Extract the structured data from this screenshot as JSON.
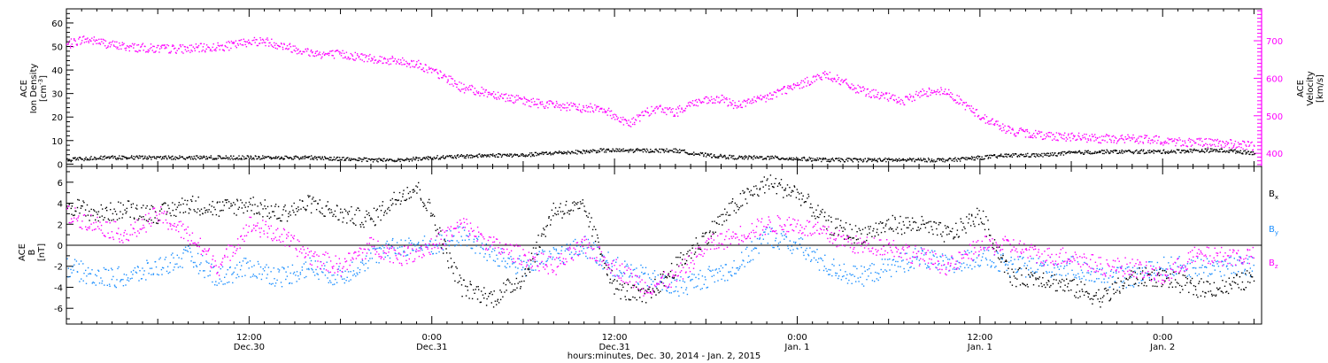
{
  "xaxis": {
    "title": "hours:minutes, Dec. 30, 2014 - Jan. 2, 2015",
    "ticks": [
      {
        "t": 12,
        "time": "12:00",
        "date": "Dec.30"
      },
      {
        "t": 24,
        "time": "0:00",
        "date": "Dec.31"
      },
      {
        "t": 36,
        "time": "12:00",
        "date": "Dec.31"
      },
      {
        "t": 48,
        "time": "0:00",
        "date": "Jan. 1"
      },
      {
        "t": 60,
        "time": "12:00",
        "date": "Jan. 1"
      },
      {
        "t": 72,
        "time": "0:00",
        "date": "Jan. 2"
      }
    ]
  },
  "chart_data": [
    {
      "type": "scatter",
      "panel": "top",
      "xlim": [
        0,
        78.5
      ],
      "x_unit": "hours since Dec. 30, 2014 0:00",
      "left_axis": {
        "label_lines": [
          "ACE",
          "Ion Density"
        ],
        "unit_base": "[cm",
        "unit_sup": "-3",
        "unit_close": "]",
        "ylim": [
          -1,
          66
        ],
        "ticks": [
          0,
          10,
          20,
          30,
          40,
          50,
          60
        ]
      },
      "right_axis": {
        "label_lines": [
          "ACE",
          "Velocity",
          "[km/s]"
        ],
        "ylim": [
          365,
          785
        ],
        "ticks": [
          400,
          500,
          600,
          700
        ],
        "color": "#ff00ff"
      },
      "series": [
        {
          "axis": "left",
          "color": "#000000",
          "x": [
            0,
            2,
            4,
            6,
            8,
            10,
            12,
            14,
            16,
            18,
            20,
            22,
            24,
            26,
            28,
            30,
            32,
            34,
            35,
            36,
            38,
            40,
            42,
            44,
            46,
            48,
            50,
            52,
            54,
            56,
            58,
            60,
            62,
            64,
            66,
            68,
            70,
            72,
            74,
            76,
            78
          ],
          "y": [
            2,
            3,
            3,
            3,
            3,
            3,
            3,
            3,
            3,
            2.5,
            2,
            2,
            3,
            3.5,
            4,
            4,
            5,
            5.5,
            6,
            6,
            6,
            6,
            4,
            3,
            3,
            2.5,
            2,
            2,
            2,
            2,
            2,
            3,
            4,
            4,
            5,
            5.5,
            5.5,
            5.5,
            6,
            6,
            5
          ]
        },
        {
          "axis": "right",
          "color": "#ff00ff",
          "x": [
            0,
            1,
            2,
            3,
            4,
            6,
            8,
            10,
            11,
            12,
            13,
            14,
            15,
            16,
            17,
            18,
            19,
            20,
            21,
            22,
            23,
            24,
            25,
            26,
            28,
            30,
            32,
            34,
            35,
            36,
            37,
            38,
            39,
            40,
            41,
            42,
            43,
            44,
            45,
            46,
            47,
            48,
            49,
            50,
            51,
            52,
            53,
            54,
            55,
            56,
            57,
            58,
            59,
            60,
            61,
            62,
            64,
            66,
            68,
            70,
            72,
            74,
            76,
            78
          ],
          "y": [
            690,
            705,
            700,
            690,
            685,
            680,
            680,
            685,
            690,
            700,
            700,
            690,
            680,
            670,
            665,
            665,
            660,
            655,
            650,
            645,
            640,
            620,
            600,
            575,
            560,
            540,
            530,
            520,
            525,
            500,
            480,
            510,
            520,
            510,
            535,
            540,
            545,
            530,
            540,
            550,
            570,
            580,
            600,
            610,
            590,
            570,
            560,
            550,
            540,
            560,
            570,
            560,
            530,
            500,
            480,
            460,
            450,
            445,
            440,
            440,
            435,
            430,
            428,
            420
          ]
        }
      ]
    },
    {
      "type": "scatter",
      "panel": "bottom",
      "xlim": [
        0,
        78.5
      ],
      "x_unit": "hours since Dec. 30, 2014 0:00",
      "left_axis": {
        "label_lines": [
          "ACE",
          "B",
          "[nT]"
        ],
        "ylim": [
          -7.5,
          7.5
        ],
        "ticks": [
          -6,
          -4,
          -2,
          0,
          2,
          4,
          6
        ]
      },
      "zero_line": true,
      "legend_placement": "right",
      "series": [
        {
          "name_base": "B",
          "name_sub": "x",
          "color": "#000000",
          "x": [
            0,
            2,
            4,
            6,
            8,
            10,
            12,
            14,
            16,
            18,
            20,
            22,
            23,
            24,
            25,
            26,
            28,
            30,
            32,
            34,
            36,
            38,
            40,
            42,
            44,
            46,
            48,
            50,
            52,
            54,
            56,
            58,
            60,
            62,
            64,
            66,
            68,
            70,
            72,
            74,
            76,
            78
          ],
          "y": [
            4,
            3,
            3.5,
            3,
            4,
            3.5,
            4,
            3,
            4,
            3,
            2.5,
            5,
            5.5,
            3,
            -1,
            -4,
            -5,
            -3,
            3.5,
            3.5,
            -4,
            -5,
            -2,
            1,
            4,
            6,
            5,
            2,
            1,
            2,
            2,
            1,
            3,
            -3,
            -3,
            -4,
            -5,
            -3,
            -3,
            -4,
            -4,
            -3
          ]
        },
        {
          "name_base": "B",
          "name_sub": "y",
          "color": "#1e90ff",
          "x": [
            0,
            2,
            4,
            6,
            8,
            10,
            12,
            14,
            16,
            18,
            20,
            22,
            24,
            26,
            28,
            30,
            32,
            34,
            36,
            38,
            40,
            42,
            44,
            46,
            48,
            50,
            52,
            54,
            56,
            58,
            60,
            62,
            64,
            66,
            68,
            70,
            72,
            74,
            76,
            78
          ],
          "y": [
            -2,
            -3,
            -3,
            -2,
            -1,
            -3,
            -2,
            -3,
            -2,
            -3,
            -1,
            0,
            0,
            1,
            -1,
            -2,
            -1,
            0,
            -2,
            -3,
            -4,
            -3,
            -2,
            1,
            0,
            -2,
            -3,
            -2,
            -1,
            -2,
            -1,
            -2,
            -2,
            -2,
            -3,
            -3,
            -2,
            -2,
            -2,
            -2
          ]
        },
        {
          "name_base": "B",
          "name_sub": "z",
          "color": "#ff00ff",
          "x": [
            0,
            2,
            4,
            6,
            8,
            10,
            12,
            14,
            16,
            18,
            20,
            22,
            24,
            26,
            28,
            30,
            32,
            34,
            36,
            38,
            40,
            42,
            44,
            46,
            48,
            50,
            52,
            54,
            56,
            58,
            60,
            62,
            64,
            66,
            68,
            70,
            72,
            74,
            76,
            78
          ],
          "y": [
            3,
            2,
            1,
            3,
            1,
            -2,
            2,
            1,
            -1,
            -2,
            0,
            -1,
            0,
            2,
            0,
            -1,
            -2,
            0,
            -2,
            -4,
            -3,
            0,
            1,
            2,
            2,
            1,
            0,
            0,
            -1,
            -2,
            0,
            0,
            -1,
            -1,
            -2,
            -2,
            -3,
            -1,
            -1,
            -1
          ]
        }
      ]
    }
  ]
}
